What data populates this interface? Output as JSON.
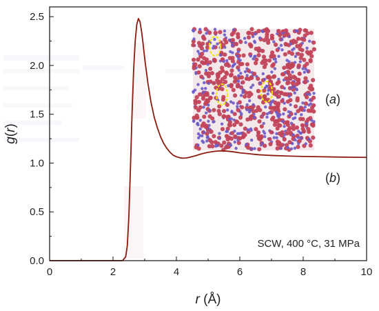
{
  "chart_data": {
    "type": "line",
    "title": "",
    "xlabel": {
      "var": "r",
      "unit": " (Å)"
    },
    "ylabel": {
      "func": "g",
      "open": "(",
      "var": "r",
      "close": ")"
    },
    "xlim": [
      0,
      10
    ],
    "ylim": [
      0,
      2.6
    ],
    "xticks": [
      "0",
      "2",
      "4",
      "6",
      "8",
      "10"
    ],
    "yticks": [
      "0.0",
      "0.5",
      "1.0",
      "1.5",
      "2.0",
      "2.5"
    ],
    "grid": false,
    "line_color": "#8b1a10",
    "series": [
      {
        "x": [
          0,
          2.3,
          2.4,
          2.45,
          2.5,
          2.55,
          2.6,
          2.65,
          2.7,
          2.75,
          2.8,
          2.85,
          2.9,
          2.95,
          3.0,
          3.1,
          3.2,
          3.3,
          3.4,
          3.5,
          3.6,
          3.7,
          3.8,
          3.9,
          4.0,
          4.1,
          4.2,
          4.3,
          4.4,
          4.6,
          4.8,
          5.0,
          5.2,
          5.4,
          5.6,
          5.8,
          6.0,
          6.3,
          6.6,
          7.0,
          7.5,
          8.0,
          8.5,
          9.0,
          9.5,
          10.0
        ],
        "y": [
          0,
          0.0,
          0.04,
          0.15,
          0.45,
          0.95,
          1.5,
          1.95,
          2.25,
          2.42,
          2.48,
          2.45,
          2.35,
          2.22,
          2.07,
          1.82,
          1.62,
          1.47,
          1.36,
          1.27,
          1.2,
          1.15,
          1.11,
          1.08,
          1.065,
          1.055,
          1.05,
          1.052,
          1.058,
          1.075,
          1.095,
          1.11,
          1.12,
          1.125,
          1.122,
          1.115,
          1.105,
          1.095,
          1.085,
          1.078,
          1.072,
          1.068,
          1.065,
          1.062,
          1.06,
          1.058
        ]
      }
    ],
    "annotations": {
      "a_open": "(",
      "a_letter": "a",
      "a_close": ")",
      "b_open": "(",
      "b_letter": "b",
      "b_close": ")",
      "conditions": "SCW, 400 °C, 31 MPa"
    },
    "inset": {
      "kind": "molecular snapshot",
      "colors": {
        "oxygen": "#c2455a",
        "hydrogen": "#6a5ac8",
        "highlight": "#f2e600"
      }
    }
  }
}
